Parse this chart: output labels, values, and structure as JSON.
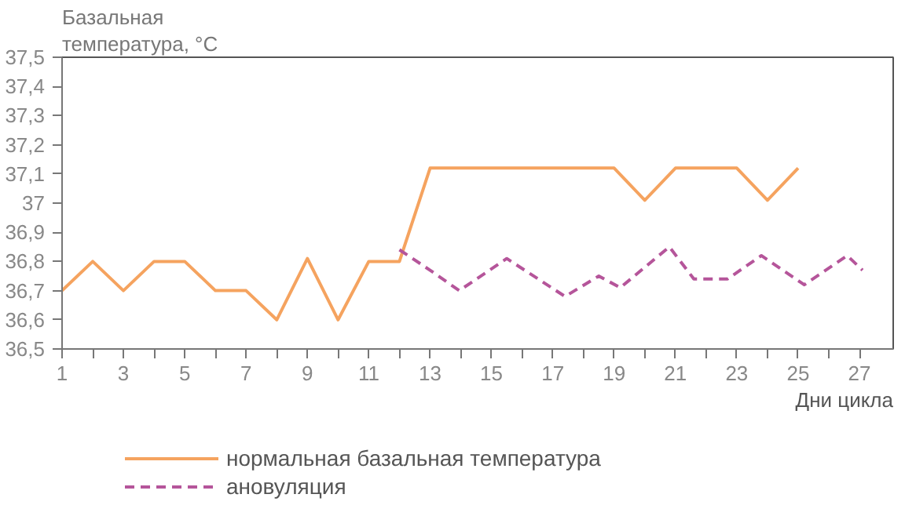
{
  "chart_data": {
    "type": "line",
    "ylabel": "Базальная\nтемпература, °C",
    "xlabel": "Дни цикла",
    "x": [
      1,
      2,
      3,
      4,
      5,
      6,
      7,
      8,
      9,
      10,
      11,
      12,
      13,
      14,
      15,
      16,
      17,
      18,
      19,
      20,
      21,
      22,
      23,
      24,
      25
    ],
    "series": [
      {
        "name": "нормальная базальная температура",
        "color": "#f5a35f",
        "line_style": "solid",
        "values": [
          36.7,
          36.8,
          36.7,
          36.8,
          36.8,
          36.7,
          36.7,
          36.6,
          36.81,
          36.6,
          36.8,
          36.8,
          37.12,
          37.12,
          37.12,
          37.12,
          37.12,
          37.12,
          37.12,
          37.01,
          37.12,
          37.12,
          37.12,
          37.01,
          37.12
        ]
      },
      {
        "name": "ановуляция",
        "color": "#b5559a",
        "line_style": "dashed",
        "x": [
          12,
          13,
          13.95,
          15.5,
          17.4,
          18.5,
          19.2,
          20.8,
          21.6,
          22.7,
          23.8,
          25.2,
          26.6,
          27.1
        ],
        "values": [
          36.84,
          36.77,
          36.7,
          36.81,
          36.68,
          36.75,
          36.71,
          36.85,
          36.74,
          36.74,
          36.82,
          36.72,
          36.82,
          36.77
        ]
      }
    ],
    "xlim": [
      1,
      28.1
    ],
    "ylim": [
      36.5,
      37.5
    ],
    "xticks": [
      1,
      {
        "value": 2,
        "label": null
      },
      3,
      {
        "value": 4,
        "label": null
      },
      5,
      {
        "value": 6,
        "label": null
      },
      7,
      {
        "value": 8,
        "label": null
      },
      9,
      {
        "value": 10,
        "label": null
      },
      11,
      {
        "value": 12,
        "label": null
      },
      13,
      {
        "value": 14,
        "label": null
      },
      15,
      {
        "value": 16,
        "label": null
      },
      17,
      {
        "value": 18,
        "label": null
      },
      19,
      {
        "value": 20,
        "label": null
      },
      21,
      {
        "value": 22,
        "label": null
      },
      23,
      {
        "value": 24,
        "label": null
      },
      25,
      {
        "value": 26,
        "label": null
      },
      27
    ],
    "yticks": [
      {
        "value": 36.5,
        "label": "36,5"
      },
      {
        "value": 36.6,
        "label": "36,6"
      },
      {
        "value": 36.7,
        "label": "36,7"
      },
      {
        "value": 36.8,
        "label": "36,8"
      },
      {
        "value": 36.9,
        "label": "36,9"
      },
      37,
      {
        "value": 37.1,
        "label": "37,1"
      },
      {
        "value": 37.2,
        "label": "37,2"
      },
      {
        "value": 37.3,
        "label": "37,3"
      },
      {
        "value": 37.4,
        "label": "37,4"
      },
      {
        "value": 37.5,
        "label": "37,5"
      }
    ],
    "grid": false,
    "legend": "bottom left",
    "marker": "none"
  }
}
